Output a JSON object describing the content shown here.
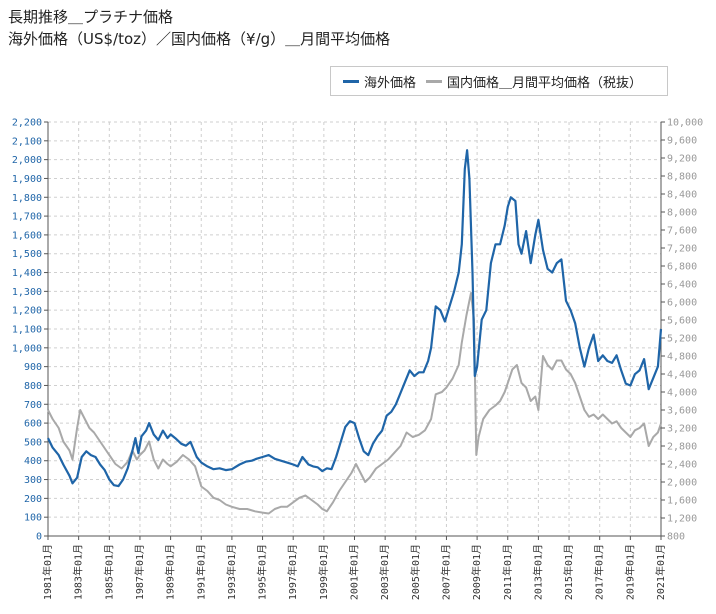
{
  "title_line1": "長期推移＿プラチナ価格",
  "title_line2": "海外価格（US$/toz）／国内価格（¥/g）＿月間平均価格",
  "colors": {
    "overseas": "#1f65a8",
    "domestic": "#a9a9a9",
    "left_axis": "#1f65a8",
    "right_axis": "#999999",
    "grid": "#cfcfcf"
  },
  "chart_data": {
    "type": "line",
    "legend_position": "top-right",
    "grid": true,
    "y_left": {
      "min": 0,
      "max": 2200,
      "step": 100,
      "ticks": [
        "0",
        "100",
        "200",
        "300",
        "400",
        "500",
        "600",
        "700",
        "800",
        "900",
        "1,000",
        "1,100",
        "1,200",
        "1,300",
        "1,400",
        "1,500",
        "1,600",
        "1,700",
        "1,800",
        "1,900",
        "2,000",
        "2,100",
        "2,200"
      ]
    },
    "y_right": {
      "min": 800,
      "max": 10000,
      "step": 400,
      "ticks": [
        "800",
        "1,200",
        "1,600",
        "2,000",
        "2,400",
        "2,800",
        "3,200",
        "3,600",
        "4,000",
        "4,400",
        "4,800",
        "5,200",
        "5,600",
        "6,000",
        "6,400",
        "6,800",
        "7,200",
        "7,600",
        "8,000",
        "8,400",
        "8,800",
        "9,200",
        "9,600",
        "10,000"
      ]
    },
    "x_range": [
      1981.0,
      2021.0
    ],
    "x_ticks": [
      {
        "x": 1981,
        "label": "1981年01月"
      },
      {
        "x": 1983,
        "label": "1983年01月"
      },
      {
        "x": 1985,
        "label": "1985年01月"
      },
      {
        "x": 1987,
        "label": "1987年01月"
      },
      {
        "x": 1989,
        "label": "1989年01月"
      },
      {
        "x": 1991,
        "label": "1991年01月"
      },
      {
        "x": 1993,
        "label": "1993年01月"
      },
      {
        "x": 1995,
        "label": "1995年01月"
      },
      {
        "x": 1997,
        "label": "1997年01月"
      },
      {
        "x": 1999,
        "label": "1999年01月"
      },
      {
        "x": 2001,
        "label": "2001年01月"
      },
      {
        "x": 2003,
        "label": "2003年01月"
      },
      {
        "x": 2005,
        "label": "2005年01月"
      },
      {
        "x": 2007,
        "label": "2007年01月"
      },
      {
        "x": 2009,
        "label": "2009年01月"
      },
      {
        "x": 2011,
        "label": "2011年01月"
      },
      {
        "x": 2013,
        "label": "2013年01月"
      },
      {
        "x": 2015,
        "label": "2015年01月"
      },
      {
        "x": 2017,
        "label": "2017年01月"
      },
      {
        "x": 2019,
        "label": "2019年01月"
      },
      {
        "x": 2021,
        "label": "2021年01月"
      }
    ],
    "series": [
      {
        "name": "海外価格",
        "axis": "left",
        "points": [
          [
            1981.0,
            520
          ],
          [
            1981.3,
            470
          ],
          [
            1981.7,
            430
          ],
          [
            1982.0,
            380
          ],
          [
            1982.4,
            320
          ],
          [
            1982.6,
            280
          ],
          [
            1982.9,
            310
          ],
          [
            1983.2,
            420
          ],
          [
            1983.5,
            450
          ],
          [
            1983.8,
            430
          ],
          [
            1984.1,
            420
          ],
          [
            1984.4,
            380
          ],
          [
            1984.7,
            350
          ],
          [
            1985.0,
            300
          ],
          [
            1985.3,
            270
          ],
          [
            1985.6,
            265
          ],
          [
            1985.9,
            300
          ],
          [
            1986.2,
            360
          ],
          [
            1986.5,
            450
          ],
          [
            1986.7,
            520
          ],
          [
            1986.9,
            440
          ],
          [
            1987.1,
            530
          ],
          [
            1987.4,
            560
          ],
          [
            1987.6,
            600
          ],
          [
            1987.9,
            540
          ],
          [
            1988.2,
            510
          ],
          [
            1988.5,
            560
          ],
          [
            1988.8,
            520
          ],
          [
            1989.0,
            540
          ],
          [
            1989.3,
            520
          ],
          [
            1989.7,
            490
          ],
          [
            1990.0,
            480
          ],
          [
            1990.3,
            500
          ],
          [
            1990.7,
            420
          ],
          [
            1991.0,
            390
          ],
          [
            1991.4,
            370
          ],
          [
            1991.8,
            355
          ],
          [
            1992.2,
            360
          ],
          [
            1992.6,
            350
          ],
          [
            1993.0,
            355
          ],
          [
            1993.5,
            380
          ],
          [
            1993.9,
            395
          ],
          [
            1994.3,
            400
          ],
          [
            1994.6,
            410
          ],
          [
            1995.0,
            420
          ],
          [
            1995.4,
            430
          ],
          [
            1995.8,
            410
          ],
          [
            1996.2,
            400
          ],
          [
            1996.6,
            390
          ],
          [
            1997.0,
            380
          ],
          [
            1997.3,
            370
          ],
          [
            1997.6,
            420
          ],
          [
            1998.0,
            380
          ],
          [
            1998.3,
            370
          ],
          [
            1998.6,
            365
          ],
          [
            1998.9,
            345
          ],
          [
            1999.2,
            360
          ],
          [
            1999.5,
            355
          ],
          [
            1999.8,
            420
          ],
          [
            2000.1,
            500
          ],
          [
            2000.4,
            580
          ],
          [
            2000.7,
            610
          ],
          [
            2001.0,
            600
          ],
          [
            2001.3,
            520
          ],
          [
            2001.6,
            450
          ],
          [
            2001.9,
            430
          ],
          [
            2002.2,
            490
          ],
          [
            2002.5,
            530
          ],
          [
            2002.8,
            560
          ],
          [
            2003.1,
            640
          ],
          [
            2003.4,
            660
          ],
          [
            2003.7,
            700
          ],
          [
            2004.0,
            760
          ],
          [
            2004.3,
            820
          ],
          [
            2004.6,
            880
          ],
          [
            2004.9,
            850
          ],
          [
            2005.2,
            870
          ],
          [
            2005.5,
            870
          ],
          [
            2005.8,
            930
          ],
          [
            2006.0,
            1000
          ],
          [
            2006.3,
            1220
          ],
          [
            2006.6,
            1200
          ],
          [
            2006.9,
            1140
          ],
          [
            2007.2,
            1220
          ],
          [
            2007.5,
            1300
          ],
          [
            2007.8,
            1400
          ],
          [
            2008.0,
            1550
          ],
          [
            2008.2,
            1950
          ],
          [
            2008.35,
            2050
          ],
          [
            2008.5,
            1900
          ],
          [
            2008.7,
            1400
          ],
          [
            2008.85,
            850
          ],
          [
            2009.0,
            900
          ],
          [
            2009.3,
            1150
          ],
          [
            2009.6,
            1200
          ],
          [
            2009.9,
            1450
          ],
          [
            2010.2,
            1550
          ],
          [
            2010.5,
            1550
          ],
          [
            2010.8,
            1650
          ],
          [
            2011.0,
            1750
          ],
          [
            2011.2,
            1800
          ],
          [
            2011.5,
            1780
          ],
          [
            2011.7,
            1550
          ],
          [
            2011.9,
            1500
          ],
          [
            2012.2,
            1620
          ],
          [
            2012.5,
            1450
          ],
          [
            2012.8,
            1600
          ],
          [
            2013.0,
            1680
          ],
          [
            2013.3,
            1520
          ],
          [
            2013.6,
            1420
          ],
          [
            2013.9,
            1400
          ],
          [
            2014.2,
            1450
          ],
          [
            2014.5,
            1470
          ],
          [
            2014.8,
            1250
          ],
          [
            2015.1,
            1200
          ],
          [
            2015.4,
            1130
          ],
          [
            2015.7,
            1000
          ],
          [
            2016.0,
            900
          ],
          [
            2016.3,
            1000
          ],
          [
            2016.6,
            1070
          ],
          [
            2016.9,
            930
          ],
          [
            2017.2,
            960
          ],
          [
            2017.5,
            930
          ],
          [
            2017.8,
            920
          ],
          [
            2018.1,
            960
          ],
          [
            2018.4,
            880
          ],
          [
            2018.7,
            810
          ],
          [
            2019.0,
            800
          ],
          [
            2019.3,
            860
          ],
          [
            2019.6,
            880
          ],
          [
            2019.9,
            940
          ],
          [
            2020.2,
            780
          ],
          [
            2020.5,
            840
          ],
          [
            2020.8,
            900
          ],
          [
            2021.0,
            1100
          ]
        ]
      },
      {
        "name": "国内価格＿月間平均価格（税抜）",
        "axis": "right",
        "points": [
          [
            1981.0,
            3600
          ],
          [
            1981.3,
            3400
          ],
          [
            1981.7,
            3200
          ],
          [
            1982.0,
            2900
          ],
          [
            1982.4,
            2700
          ],
          [
            1982.6,
            2500
          ],
          [
            1982.9,
            3200
          ],
          [
            1983.1,
            3600
          ],
          [
            1983.4,
            3400
          ],
          [
            1983.7,
            3200
          ],
          [
            1984.0,
            3100
          ],
          [
            1984.4,
            2900
          ],
          [
            1984.8,
            2700
          ],
          [
            1985.0,
            2600
          ],
          [
            1985.4,
            2400
          ],
          [
            1985.8,
            2300
          ],
          [
            1986.2,
            2450
          ],
          [
            1986.5,
            2700
          ],
          [
            1986.8,
            2500
          ],
          [
            1987.0,
            2600
          ],
          [
            1987.3,
            2700
          ],
          [
            1987.6,
            2900
          ],
          [
            1987.9,
            2500
          ],
          [
            1988.2,
            2300
          ],
          [
            1988.5,
            2500
          ],
          [
            1988.8,
            2400
          ],
          [
            1989.0,
            2350
          ],
          [
            1989.4,
            2450
          ],
          [
            1989.8,
            2600
          ],
          [
            1990.2,
            2500
          ],
          [
            1990.6,
            2350
          ],
          [
            1991.0,
            1900
          ],
          [
            1991.4,
            1800
          ],
          [
            1991.8,
            1650
          ],
          [
            1992.2,
            1600
          ],
          [
            1992.6,
            1500
          ],
          [
            1993.0,
            1450
          ],
          [
            1993.5,
            1400
          ],
          [
            1994.0,
            1400
          ],
          [
            1994.5,
            1350
          ],
          [
            1995.0,
            1320
          ],
          [
            1995.4,
            1300
          ],
          [
            1995.8,
            1400
          ],
          [
            1996.2,
            1450
          ],
          [
            1996.6,
            1450
          ],
          [
            1997.0,
            1550
          ],
          [
            1997.4,
            1650
          ],
          [
            1997.8,
            1700
          ],
          [
            1998.2,
            1600
          ],
          [
            1998.6,
            1500
          ],
          [
            1998.9,
            1400
          ],
          [
            1999.2,
            1350
          ],
          [
            1999.6,
            1550
          ],
          [
            2000.0,
            1800
          ],
          [
            2000.4,
            2000
          ],
          [
            2000.8,
            2200
          ],
          [
            2001.1,
            2400
          ],
          [
            2001.4,
            2200
          ],
          [
            2001.7,
            2000
          ],
          [
            2002.0,
            2100
          ],
          [
            2002.4,
            2300
          ],
          [
            2002.8,
            2400
          ],
          [
            2003.2,
            2500
          ],
          [
            2003.6,
            2650
          ],
          [
            2004.0,
            2800
          ],
          [
            2004.4,
            3100
          ],
          [
            2004.8,
            3000
          ],
          [
            2005.2,
            3050
          ],
          [
            2005.6,
            3150
          ],
          [
            2006.0,
            3400
          ],
          [
            2006.3,
            3950
          ],
          [
            2006.7,
            4000
          ],
          [
            2007.0,
            4100
          ],
          [
            2007.4,
            4300
          ],
          [
            2007.8,
            4600
          ],
          [
            2008.0,
            5100
          ],
          [
            2008.3,
            5700
          ],
          [
            2008.6,
            6200
          ],
          [
            2008.8,
            5600
          ],
          [
            2008.95,
            2600
          ],
          [
            2009.1,
            3000
          ],
          [
            2009.4,
            3400
          ],
          [
            2009.8,
            3600
          ],
          [
            2010.2,
            3700
          ],
          [
            2010.5,
            3800
          ],
          [
            2010.8,
            4000
          ],
          [
            2011.0,
            4200
          ],
          [
            2011.3,
            4500
          ],
          [
            2011.6,
            4600
          ],
          [
            2011.9,
            4200
          ],
          [
            2012.2,
            4100
          ],
          [
            2012.5,
            3800
          ],
          [
            2012.8,
            3900
          ],
          [
            2013.0,
            3600
          ],
          [
            2013.3,
            4800
          ],
          [
            2013.6,
            4600
          ],
          [
            2013.9,
            4500
          ],
          [
            2014.2,
            4700
          ],
          [
            2014.5,
            4700
          ],
          [
            2014.8,
            4500
          ],
          [
            2015.1,
            4400
          ],
          [
            2015.4,
            4200
          ],
          [
            2015.7,
            3900
          ],
          [
            2016.0,
            3600
          ],
          [
            2016.3,
            3450
          ],
          [
            2016.6,
            3500
          ],
          [
            2016.9,
            3400
          ],
          [
            2017.2,
            3500
          ],
          [
            2017.5,
            3400
          ],
          [
            2017.8,
            3300
          ],
          [
            2018.1,
            3350
          ],
          [
            2018.4,
            3200
          ],
          [
            2018.7,
            3100
          ],
          [
            2019.0,
            3000
          ],
          [
            2019.3,
            3150
          ],
          [
            2019.6,
            3200
          ],
          [
            2019.9,
            3300
          ],
          [
            2020.2,
            2800
          ],
          [
            2020.5,
            3000
          ],
          [
            2020.8,
            3100
          ],
          [
            2021.0,
            3300
          ]
        ]
      }
    ]
  }
}
